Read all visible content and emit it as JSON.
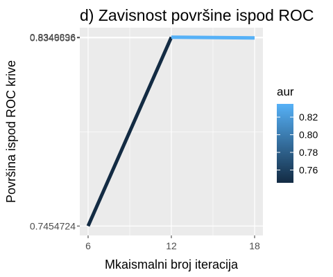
{
  "chart_data": {
    "type": "line",
    "title": "d) Zavisnost površine ispod ROC",
    "xlabel": "Mkaismalni broj iteracija",
    "ylabel": "Površina ispod ROC krive",
    "x": [
      6,
      12,
      18
    ],
    "y": [
      0.7454724,
      0.8349896,
      0.8346636
    ],
    "xlim": [
      5.4,
      18.6
    ],
    "ylim": [
      0.741,
      0.8395
    ],
    "x_ticks": [
      6,
      12,
      18
    ],
    "x_tick_labels": [
      "6",
      "12",
      "18"
    ],
    "y_ticks": [
      0.7454724,
      0.8346636,
      0.8349896
    ],
    "y_tick_labels": [
      "0.7454724",
      "0.8346636",
      "0.8349896"
    ],
    "grid": true,
    "colorbar": {
      "title": "aur",
      "ticks": [
        0.76,
        0.78,
        0.8,
        0.82
      ],
      "tick_labels": [
        "0.76",
        "0.78",
        "0.80",
        "0.82"
      ],
      "range": [
        0.7454724,
        0.8349896
      ],
      "low_color": "#132B43",
      "high_color": "#56B1F7"
    },
    "panel_background": "#EBEBEB",
    "grid_color": "#FFFFFF"
  }
}
